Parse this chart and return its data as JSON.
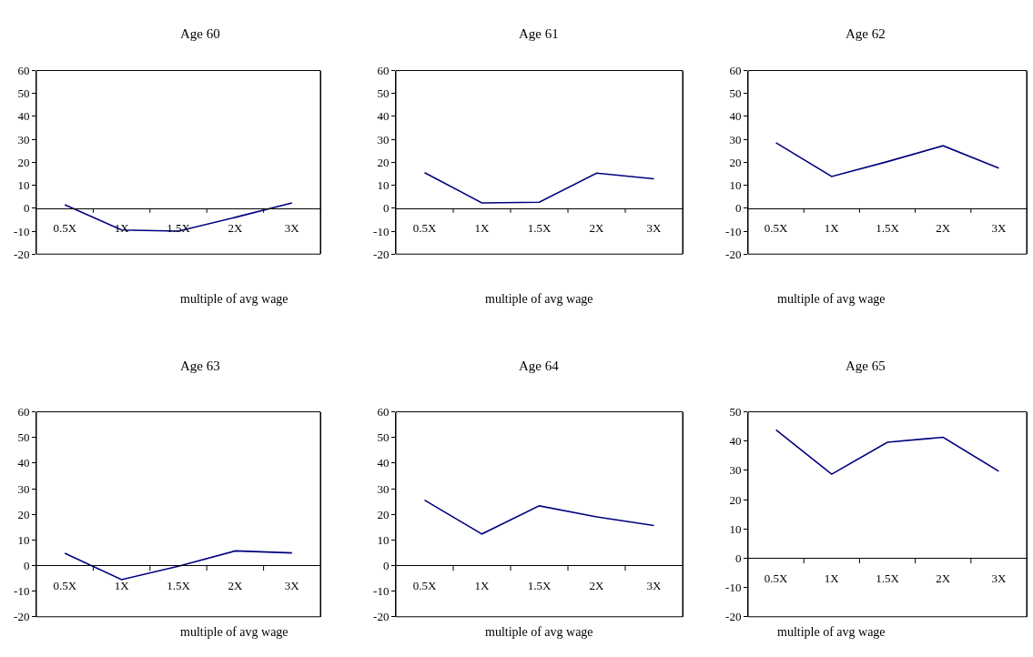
{
  "chart_data": [
    {
      "type": "line",
      "title": "Age 60",
      "xlabel": "multiple of avg wage",
      "categories": [
        "0.5X",
        "1X",
        "1.5X",
        "2X",
        "3X"
      ],
      "color": "#000080",
      "values": [
        1.5,
        -9.5,
        -10,
        -4,
        2.3
      ],
      "ylim": [
        -20,
        60
      ],
      "yticks": [
        -20,
        -10,
        0,
        10,
        20,
        30,
        40,
        50,
        60
      ]
    },
    {
      "type": "line",
      "title": "Age 61",
      "xlabel": "multiple of avg wage",
      "categories": [
        "0.5X",
        "1X",
        "1.5X",
        "2X",
        "3X"
      ],
      "color": "#000080",
      "values": [
        15.5,
        2.3,
        2.6,
        15.3,
        12.8
      ],
      "ylim": [
        -20,
        60
      ],
      "yticks": [
        -20,
        -10,
        0,
        10,
        20,
        30,
        40,
        50,
        60
      ]
    },
    {
      "type": "line",
      "title": "Age 62",
      "xlabel": "multiple of avg wage",
      "categories": [
        "0.5X",
        "1X",
        "1.5X",
        "2X",
        "3X"
      ],
      "color": "#000080",
      "values": [
        28.5,
        13.8,
        20.3,
        27.2,
        17.5
      ],
      "ylim": [
        -20,
        60
      ],
      "yticks": [
        -20,
        -10,
        0,
        10,
        20,
        30,
        40,
        50,
        60
      ]
    },
    {
      "type": "line",
      "title": "Age 63",
      "xlabel": "multiple of avg wage",
      "categories": [
        "0.5X",
        "1X",
        "1.5X",
        "2X",
        "3X"
      ],
      "color": "#000080",
      "values": [
        4.8,
        -5.5,
        -0.3,
        5.7,
        4.9
      ],
      "ylim": [
        -20,
        60
      ],
      "yticks": [
        -20,
        -10,
        0,
        10,
        20,
        30,
        40,
        50,
        60
      ]
    },
    {
      "type": "line",
      "title": "Age 64",
      "xlabel": "multiple of avg wage",
      "categories": [
        "0.5X",
        "1X",
        "1.5X",
        "2X",
        "3X"
      ],
      "color": "#000080",
      "values": [
        25.5,
        12.3,
        23.3,
        19,
        15.6
      ],
      "ylim": [
        -20,
        60
      ],
      "yticks": [
        -20,
        -10,
        0,
        10,
        20,
        30,
        40,
        50,
        60
      ]
    },
    {
      "type": "line",
      "title": "Age 65",
      "xlabel": "multiple of avg wage",
      "categories": [
        "0.5X",
        "1X",
        "1.5X",
        "2X",
        "3X"
      ],
      "color": "#000080",
      "values": [
        43.8,
        28.7,
        39.6,
        41.3,
        29.7
      ],
      "ylim": [
        -20,
        50
      ],
      "yticks": [
        -20,
        -10,
        0,
        10,
        20,
        30,
        40,
        50
      ]
    }
  ]
}
